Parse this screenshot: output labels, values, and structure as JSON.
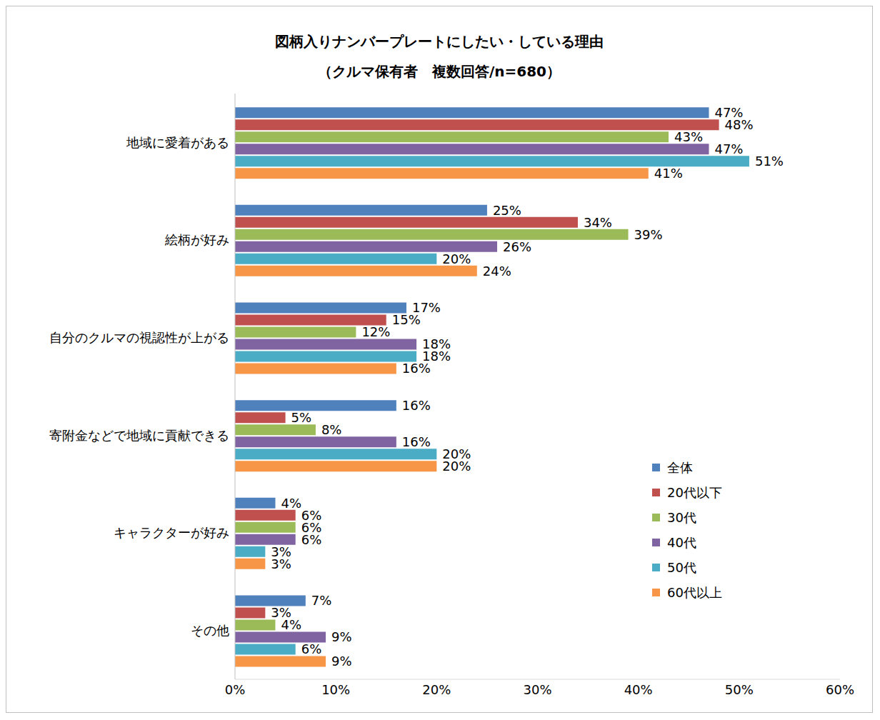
{
  "chart_data": {
    "type": "bar",
    "orientation": "horizontal",
    "title": "図柄入りナンバープレートにしたい・している理由",
    "subtitle": "（クルマ保有者　複数回答/n=680）",
    "categories": [
      "地域に愛着がある",
      "絵柄が好み",
      "自分のクルマの視認性が上がる",
      "寄附金などで地域に貢献できる",
      "キャラクターが好み",
      "その他"
    ],
    "series": [
      {
        "name": "全体",
        "color": "#4f81bd",
        "values": [
          47,
          25,
          17,
          16,
          4,
          7
        ],
        "value_labels": [
          "47%",
          "25%",
          "17%",
          "16%",
          "4%",
          "7%"
        ]
      },
      {
        "name": "20代以下",
        "color": "#c0504d",
        "values": [
          48,
          34,
          15,
          5,
          6,
          3
        ],
        "value_labels": [
          "48%",
          "34%",
          "15%",
          "5%",
          "6%",
          "3%"
        ]
      },
      {
        "name": "30代",
        "color": "#9bbb59",
        "values": [
          43,
          39,
          12,
          8,
          6,
          4
        ],
        "value_labels": [
          "43%",
          "39%",
          "12%",
          "8%",
          "6%",
          "4%"
        ]
      },
      {
        "name": "40代",
        "color": "#8064a2",
        "values": [
          47,
          26,
          18,
          16,
          6,
          9
        ],
        "value_labels": [
          "47%",
          "26%",
          "18%",
          "16%",
          "6%",
          "9%"
        ]
      },
      {
        "name": "50代",
        "color": "#4bacc6",
        "values": [
          51,
          20,
          18,
          20,
          3,
          6
        ],
        "value_labels": [
          "51%",
          "20%",
          "18%",
          "20%",
          "3%",
          "6%"
        ]
      },
      {
        "name": "60代以上",
        "color": "#f79646",
        "values": [
          41,
          24,
          16,
          20,
          3,
          9
        ],
        "value_labels": [
          "41%",
          "24%",
          "16%",
          "20%",
          "3%",
          "9%"
        ]
      }
    ],
    "xlim": [
      0,
      60
    ],
    "xticks": [
      {
        "value": 0,
        "label": "0%"
      },
      {
        "value": 10,
        "label": "10%"
      },
      {
        "value": 20,
        "label": "20%"
      },
      {
        "value": 30,
        "label": "30%"
      },
      {
        "value": 40,
        "label": "40%"
      },
      {
        "value": 50,
        "label": "50%"
      },
      {
        "value": 60,
        "label": "60%"
      }
    ],
    "grid": false,
    "legend": "lower right",
    "data_labels": true
  }
}
